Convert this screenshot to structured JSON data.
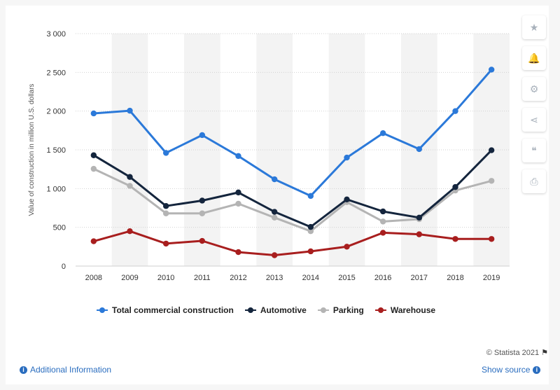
{
  "chart_data": {
    "type": "line",
    "title": "",
    "xlabel": "",
    "ylabel": "Value of construction in million U.S. dollars",
    "ylim": [
      0,
      3000
    ],
    "yticks": [
      0,
      500,
      1000,
      1500,
      2000,
      2500,
      3000
    ],
    "ytick_labels": [
      "0",
      "500",
      "1 000",
      "1 500",
      "2 000",
      "2 500",
      "3 000"
    ],
    "categories": [
      "2008",
      "2009",
      "2010",
      "2011",
      "2012",
      "2013",
      "2014",
      "2015",
      "2016",
      "2017",
      "2018",
      "2019"
    ],
    "grid": true,
    "legend_position": "bottom",
    "series": [
      {
        "name": "Total commercial construction",
        "color": "#2b79d9",
        "values": [
          1970,
          2005,
          1460,
          1690,
          1420,
          1120,
          905,
          1400,
          1715,
          1510,
          2000,
          2535
        ]
      },
      {
        "name": "Automotive",
        "color": "#14253d",
        "values": [
          1430,
          1150,
          775,
          845,
          950,
          700,
          505,
          860,
          705,
          625,
          1020,
          1495
        ]
      },
      {
        "name": "Parking",
        "color": "#b4b4b4",
        "values": [
          1255,
          1035,
          680,
          680,
          805,
          625,
          450,
          825,
          575,
          605,
          975,
          1100
        ]
      },
      {
        "name": "Warehouse",
        "color": "#a81e1e",
        "values": [
          320,
          450,
          290,
          325,
          180,
          140,
          190,
          250,
          430,
          410,
          350,
          350
        ]
      }
    ]
  },
  "toolbar": {
    "icons": [
      "star-icon",
      "bell-icon",
      "gear-icon",
      "share-icon",
      "quote-icon",
      "print-icon"
    ],
    "glyphs": [
      "★",
      "🔔",
      "⚙",
      "⋖",
      "❝",
      "⎙"
    ]
  },
  "footer": {
    "credit": "© Statista 2021",
    "additional_info": "Additional Information",
    "show_source": "Show source",
    "info_glyph": "i"
  }
}
